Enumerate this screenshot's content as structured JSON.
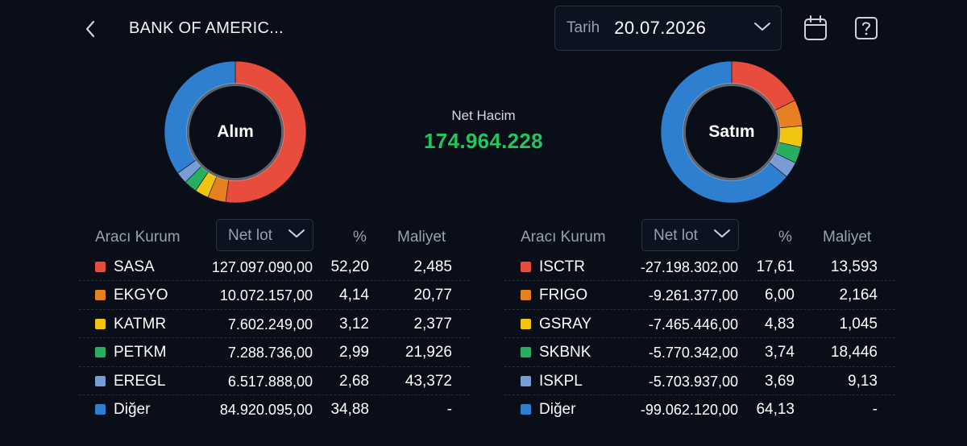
{
  "header": {
    "title": "BANK OF AMERIC...",
    "date_label": "Tarih",
    "date_value": "20.07.2026"
  },
  "colors": {
    "red": "#e74c3c",
    "orange": "#e67e22",
    "yellow": "#f1c40f",
    "green": "#27ae60",
    "lightblue": "#7a9cd6",
    "blue": "#2f7fd1",
    "net_positive": "#22c55e"
  },
  "net": {
    "label": "Net Hacim",
    "value": "174.964.228"
  },
  "buy": {
    "title": "Alım",
    "col_name": "Aracı Kurum",
    "col_lot": "Net lot",
    "col_pct": "%",
    "col_cost": "Maliyet",
    "rows": [
      {
        "name": "SASA",
        "lot": "127.097.090,00",
        "pct": "52,20",
        "cost": "2,485",
        "color": "#e74c3c"
      },
      {
        "name": "EKGYO",
        "lot": "10.072.157,00",
        "pct": "4,14",
        "cost": "20,77",
        "color": "#e67e22"
      },
      {
        "name": "KATMR",
        "lot": "7.602.249,00",
        "pct": "3,12",
        "cost": "2,377",
        "color": "#f1c40f"
      },
      {
        "name": "PETKM",
        "lot": "7.288.736,00",
        "pct": "2,99",
        "cost": "21,926",
        "color": "#27ae60"
      },
      {
        "name": "EREGL",
        "lot": "6.517.888,00",
        "pct": "2,68",
        "cost": "43,372",
        "color": "#7a9cd6"
      },
      {
        "name": "Diğer",
        "lot": "84.920.095,00",
        "pct": "34,88",
        "cost": "-",
        "color": "#2f7fd1"
      }
    ]
  },
  "sell": {
    "title": "Satım",
    "col_name": "Aracı Kurum",
    "col_lot": "Net lot",
    "col_pct": "%",
    "col_cost": "Maliyet",
    "rows": [
      {
        "name": "ISCTR",
        "lot": "-27.198.302,00",
        "pct": "17,61",
        "cost": "13,593",
        "color": "#e74c3c"
      },
      {
        "name": "FRIGO",
        "lot": "-9.261.377,00",
        "pct": "6,00",
        "cost": "2,164",
        "color": "#e67e22"
      },
      {
        "name": "GSRAY",
        "lot": "-7.465.446,00",
        "pct": "4,83",
        "cost": "1,045",
        "color": "#f1c40f"
      },
      {
        "name": "SKBNK",
        "lot": "-5.770.342,00",
        "pct": "3,74",
        "cost": "18,446",
        "color": "#27ae60"
      },
      {
        "name": "ISKPL",
        "lot": "-5.703.937,00",
        "pct": "3,69",
        "cost": "9,13",
        "color": "#7a9cd6"
      },
      {
        "name": "Diğer",
        "lot": "-99.062.120,00",
        "pct": "64,13",
        "cost": "-",
        "color": "#2f7fd1"
      }
    ]
  }
}
